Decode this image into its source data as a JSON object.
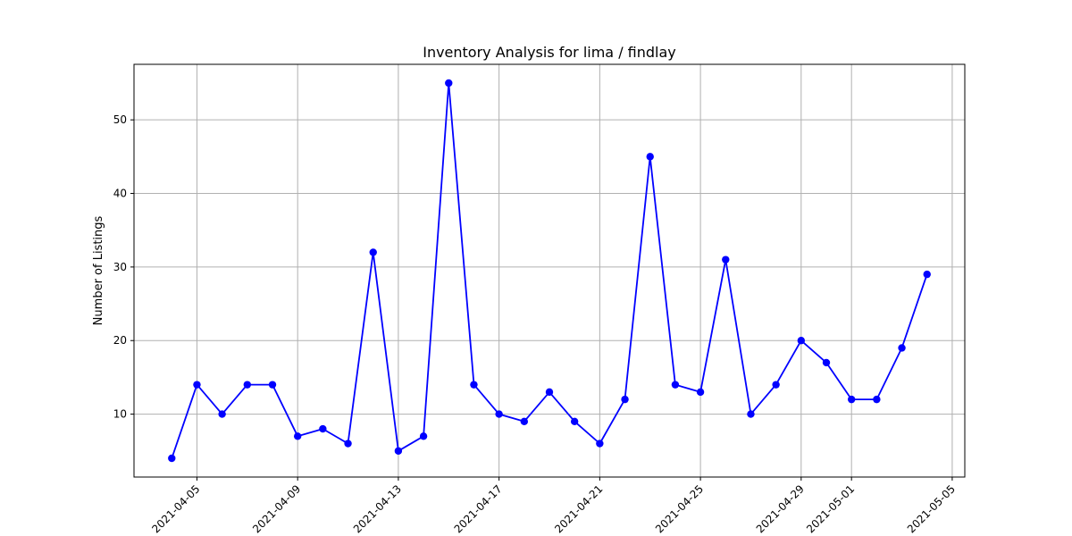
{
  "chart_data": {
    "type": "line",
    "title": "Inventory Analysis for lima / findlay",
    "xlabel": "",
    "ylabel": "Number of Listings",
    "x": [
      "2021-04-04",
      "2021-04-05",
      "2021-04-06",
      "2021-04-07",
      "2021-04-08",
      "2021-04-09",
      "2021-04-10",
      "2021-04-11",
      "2021-04-12",
      "2021-04-13",
      "2021-04-14",
      "2021-04-15",
      "2021-04-16",
      "2021-04-17",
      "2021-04-18",
      "2021-04-19",
      "2021-04-20",
      "2021-04-21",
      "2021-04-22",
      "2021-04-23",
      "2021-04-24",
      "2021-04-25",
      "2021-04-26",
      "2021-04-27",
      "2021-04-28",
      "2021-04-29",
      "2021-04-30",
      "2021-05-01",
      "2021-05-02",
      "2021-05-03",
      "2021-05-04"
    ],
    "series": [
      {
        "values": [
          4,
          14,
          10,
          14,
          14,
          7,
          8,
          6,
          32,
          5,
          7,
          55,
          14,
          10,
          9,
          13,
          9,
          6,
          12,
          45,
          14,
          13,
          31,
          10,
          14,
          20,
          17,
          12,
          12,
          19,
          29
        ],
        "color": "#0000ff",
        "marker": "circle"
      }
    ],
    "xticks": [
      "2021-04-05",
      "2021-04-09",
      "2021-04-13",
      "2021-04-17",
      "2021-04-21",
      "2021-04-25",
      "2021-04-29",
      "2021-05-01",
      "2021-05-05"
    ],
    "yticks": [
      10,
      20,
      30,
      40,
      50
    ],
    "xlim": [
      "2021-04-02T12:00",
      "2021-05-05T12:00"
    ],
    "ylim": [
      1.45,
      57.55
    ],
    "grid": true,
    "legend": "none"
  }
}
